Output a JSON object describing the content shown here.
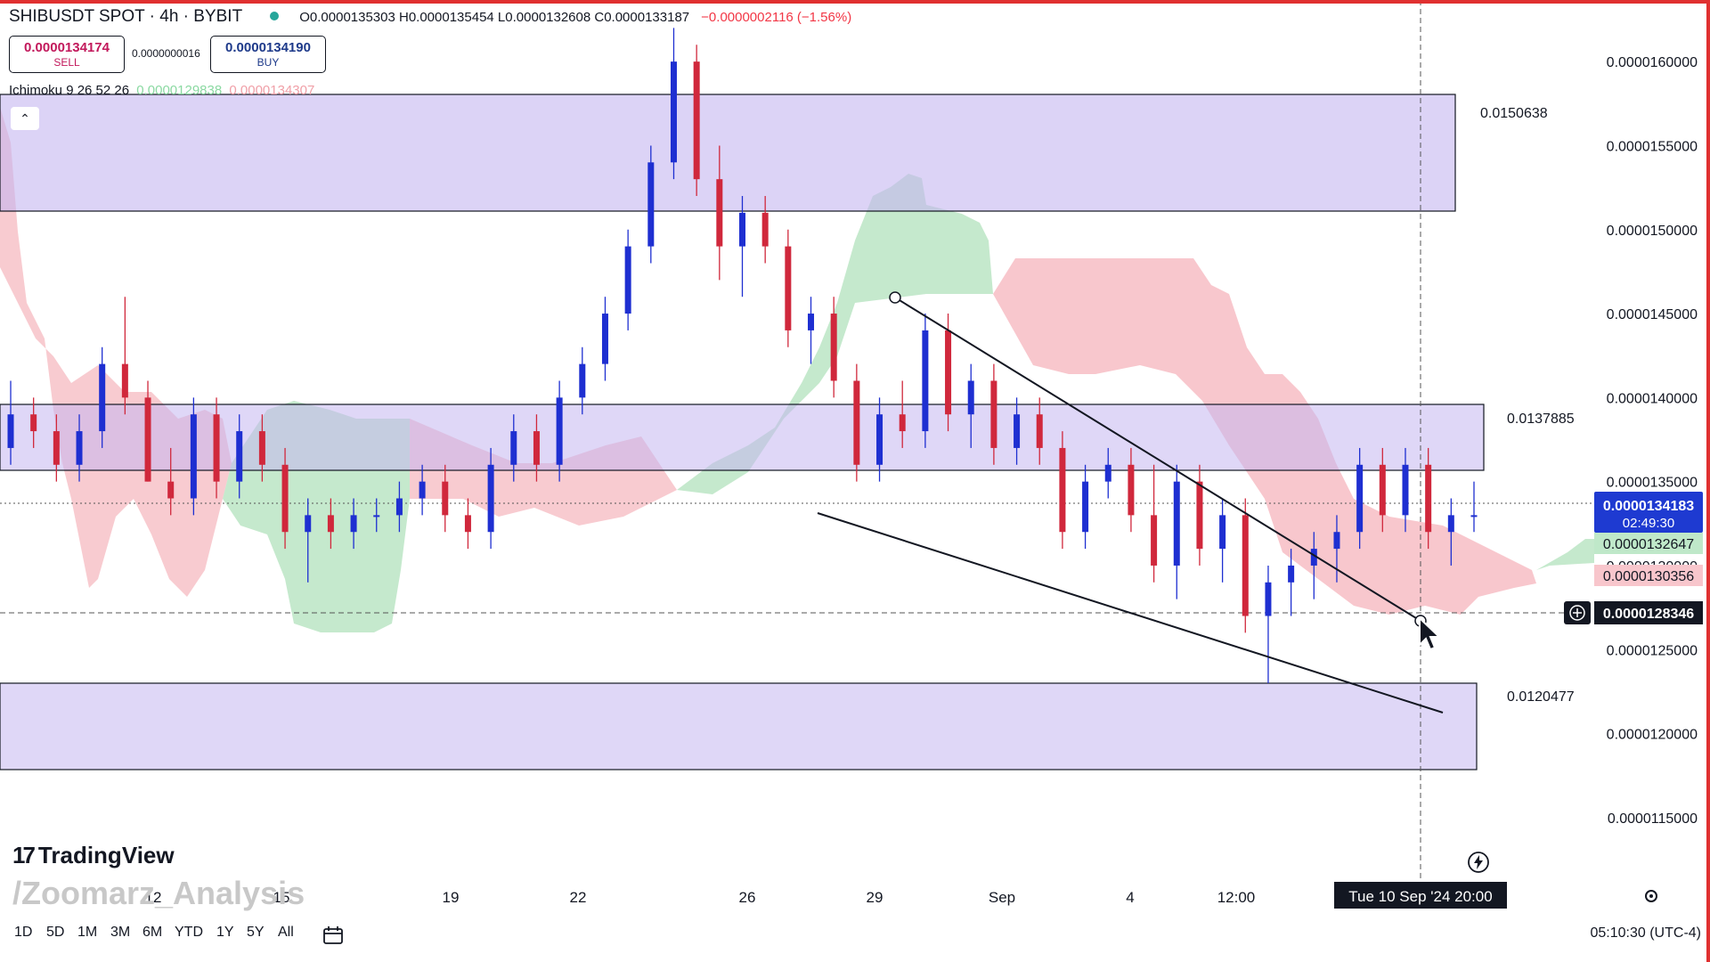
{
  "header": {
    "symbol": "SHIBUSDT SPOT · 4h · BYBIT",
    "ohlc": "O0.0000135303  H0.0000135454  L0.0000132608  C0.0000133187",
    "change": "−0.0000002116 (−1.56%)"
  },
  "trade": {
    "sell_price": "0.0000134174",
    "sell_label": "SELL",
    "spread": "0.0000000016",
    "buy_price": "0.0000134190",
    "buy_label": "BUY"
  },
  "indicator": {
    "name": "Ichimoku 9 26 52 26",
    "value1": "0.0000129838",
    "value2": "0.0000134307"
  },
  "colors": {
    "up": "#1e2fd1",
    "down": "#d0283c",
    "zone": "#cfc2f2",
    "kumo_bull": "#b6e3c0",
    "kumo_bear": "#f6b9c0",
    "current_price": "#1e3ad1",
    "green_label": "#bfe8c9",
    "red_label": "#f8c6cc"
  },
  "chart_data": {
    "type": "candlestick",
    "title": "SHIBUSDT SPOT · 4h · BYBIT",
    "ylim": [
      1.125e-05,
      1.625e-05
    ],
    "y_ticks": [
      "0.0000160000",
      "0.0000155000",
      "0.0000150000",
      "0.0000145000",
      "0.0000140000",
      "0.0000135000",
      "0.0000130000",
      "0.0000125000",
      "0.0000120000",
      "0.0000115000"
    ],
    "x_tick_labels": [
      "12",
      "15",
      "19",
      "22",
      "26",
      "29",
      "Sep",
      "4",
      "12:00"
    ],
    "crosshair_time": "Tue 10 Sep '24   20:00",
    "right_axis_labels": {
      "current_price": "0.0000134183",
      "countdown": "02:49:30",
      "kijun": "0.0000132647",
      "tenkan": "0.0000130356",
      "crosshair_price": "0.0000128346"
    },
    "zones": [
      {
        "name": "upper resistance",
        "top": 1.558e-05,
        "bottom": 1.495e-05,
        "label": "0.0150638"
      },
      {
        "name": "middle zone",
        "top": 1.394e-05,
        "bottom": 1.359e-05,
        "label": "0.0137885"
      },
      {
        "name": "lower support",
        "top": 1.246e-05,
        "bottom": 1.2e-05,
        "label": "0.0120477"
      }
    ],
    "wedge": {
      "upper": [
        [
          1.448e-05
        ],
        [
          1.29e-05
        ]
      ],
      "lower": [
        [
          1.341e-05
        ],
        [
          1.221e-05
        ]
      ]
    },
    "candles": [
      [
        1.37e-05,
        1.41e-05,
        1.36e-05,
        1.39e-05
      ],
      [
        1.39e-05,
        1.4e-05,
        1.37e-05,
        1.38e-05
      ],
      [
        1.38e-05,
        1.39e-05,
        1.35e-05,
        1.36e-05
      ],
      [
        1.36e-05,
        1.39e-05,
        1.35e-05,
        1.38e-05
      ],
      [
        1.38e-05,
        1.43e-05,
        1.37e-05,
        1.42e-05
      ],
      [
        1.42e-05,
        1.46e-05,
        1.39e-05,
        1.4e-05
      ],
      [
        1.4e-05,
        1.41e-05,
        1.35e-05,
        1.35e-05
      ],
      [
        1.35e-05,
        1.37e-05,
        1.33e-05,
        1.34e-05
      ],
      [
        1.34e-05,
        1.4e-05,
        1.33e-05,
        1.39e-05
      ],
      [
        1.39e-05,
        1.4e-05,
        1.34e-05,
        1.35e-05
      ],
      [
        1.35e-05,
        1.39e-05,
        1.34e-05,
        1.38e-05
      ],
      [
        1.38e-05,
        1.39e-05,
        1.35e-05,
        1.36e-05
      ],
      [
        1.36e-05,
        1.37e-05,
        1.31e-05,
        1.32e-05
      ],
      [
        1.32e-05,
        1.34e-05,
        1.29e-05,
        1.33e-05
      ],
      [
        1.33e-05,
        1.34e-05,
        1.31e-05,
        1.32e-05
      ],
      [
        1.32e-05,
        1.34e-05,
        1.31e-05,
        1.33e-05
      ],
      [
        1.33e-05,
        1.34e-05,
        1.32e-05,
        1.33e-05
      ],
      [
        1.33e-05,
        1.35e-05,
        1.32e-05,
        1.34e-05
      ],
      [
        1.34e-05,
        1.36e-05,
        1.33e-05,
        1.35e-05
      ],
      [
        1.35e-05,
        1.36e-05,
        1.32e-05,
        1.33e-05
      ],
      [
        1.33e-05,
        1.34e-05,
        1.31e-05,
        1.32e-05
      ],
      [
        1.32e-05,
        1.37e-05,
        1.31e-05,
        1.36e-05
      ],
      [
        1.36e-05,
        1.39e-05,
        1.35e-05,
        1.38e-05
      ],
      [
        1.38e-05,
        1.39e-05,
        1.35e-05,
        1.36e-05
      ],
      [
        1.36e-05,
        1.41e-05,
        1.35e-05,
        1.4e-05
      ],
      [
        1.4e-05,
        1.43e-05,
        1.39e-05,
        1.42e-05
      ],
      [
        1.42e-05,
        1.46e-05,
        1.41e-05,
        1.45e-05
      ],
      [
        1.45e-05,
        1.5e-05,
        1.44e-05,
        1.49e-05
      ],
      [
        1.49e-05,
        1.55e-05,
        1.48e-05,
        1.54e-05
      ],
      [
        1.54e-05,
        1.62e-05,
        1.53e-05,
        1.6e-05
      ],
      [
        1.6e-05,
        1.61e-05,
        1.52e-05,
        1.53e-05
      ],
      [
        1.53e-05,
        1.55e-05,
        1.47e-05,
        1.49e-05
      ],
      [
        1.49e-05,
        1.52e-05,
        1.46e-05,
        1.51e-05
      ],
      [
        1.51e-05,
        1.52e-05,
        1.48e-05,
        1.49e-05
      ],
      [
        1.49e-05,
        1.5e-05,
        1.43e-05,
        1.44e-05
      ],
      [
        1.44e-05,
        1.46e-05,
        1.42e-05,
        1.45e-05
      ],
      [
        1.45e-05,
        1.46e-05,
        1.4e-05,
        1.41e-05
      ],
      [
        1.41e-05,
        1.42e-05,
        1.35e-05,
        1.36e-05
      ],
      [
        1.36e-05,
        1.4e-05,
        1.35e-05,
        1.39e-05
      ],
      [
        1.39e-05,
        1.41e-05,
        1.37e-05,
        1.38e-05
      ],
      [
        1.38e-05,
        1.45e-05,
        1.37e-05,
        1.44e-05
      ],
      [
        1.44e-05,
        1.45e-05,
        1.38e-05,
        1.39e-05
      ],
      [
        1.39e-05,
        1.42e-05,
        1.37e-05,
        1.41e-05
      ],
      [
        1.41e-05,
        1.42e-05,
        1.36e-05,
        1.37e-05
      ],
      [
        1.37e-05,
        1.4e-05,
        1.36e-05,
        1.39e-05
      ],
      [
        1.39e-05,
        1.4e-05,
        1.36e-05,
        1.37e-05
      ],
      [
        1.37e-05,
        1.38e-05,
        1.31e-05,
        1.32e-05
      ],
      [
        1.32e-05,
        1.36e-05,
        1.31e-05,
        1.35e-05
      ],
      [
        1.35e-05,
        1.37e-05,
        1.34e-05,
        1.36e-05
      ],
      [
        1.36e-05,
        1.37e-05,
        1.32e-05,
        1.33e-05
      ],
      [
        1.33e-05,
        1.36e-05,
        1.29e-05,
        1.3e-05
      ],
      [
        1.3e-05,
        1.36e-05,
        1.28e-05,
        1.35e-05
      ],
      [
        1.35e-05,
        1.36e-05,
        1.3e-05,
        1.31e-05
      ],
      [
        1.31e-05,
        1.34e-05,
        1.29e-05,
        1.33e-05
      ],
      [
        1.33e-05,
        1.34e-05,
        1.26e-05,
        1.27e-05
      ],
      [
        1.27e-05,
        1.3e-05,
        1.23e-05,
        1.29e-05
      ],
      [
        1.29e-05,
        1.31e-05,
        1.27e-05,
        1.3e-05
      ],
      [
        1.3e-05,
        1.32e-05,
        1.28e-05,
        1.31e-05
      ],
      [
        1.31e-05,
        1.33e-05,
        1.29e-05,
        1.32e-05
      ],
      [
        1.32e-05,
        1.37e-05,
        1.31e-05,
        1.36e-05
      ],
      [
        1.36e-05,
        1.37e-05,
        1.32e-05,
        1.33e-05
      ],
      [
        1.33e-05,
        1.37e-05,
        1.32e-05,
        1.36e-05
      ],
      [
        1.36e-05,
        1.37e-05,
        1.31e-05,
        1.32e-05
      ],
      [
        1.32e-05,
        1.34e-05,
        1.3e-05,
        1.33e-05
      ],
      [
        1.33e-05,
        1.35e-05,
        1.32e-05,
        1.33e-05
      ]
    ]
  },
  "timeframes": [
    "1D",
    "5D",
    "1M",
    "3M",
    "6M",
    "YTD",
    "1Y",
    "5Y",
    "All"
  ],
  "clock": "05:10:30 (UTC-4)",
  "branding": {
    "logo": "TradingView",
    "watermark": "/Zoomarz_Analysis"
  },
  "icons": [
    "calendar-icon",
    "lightning-icon",
    "gear-icon",
    "cursor-icon",
    "plus-circle-icon",
    "chevron-up-icon"
  ]
}
